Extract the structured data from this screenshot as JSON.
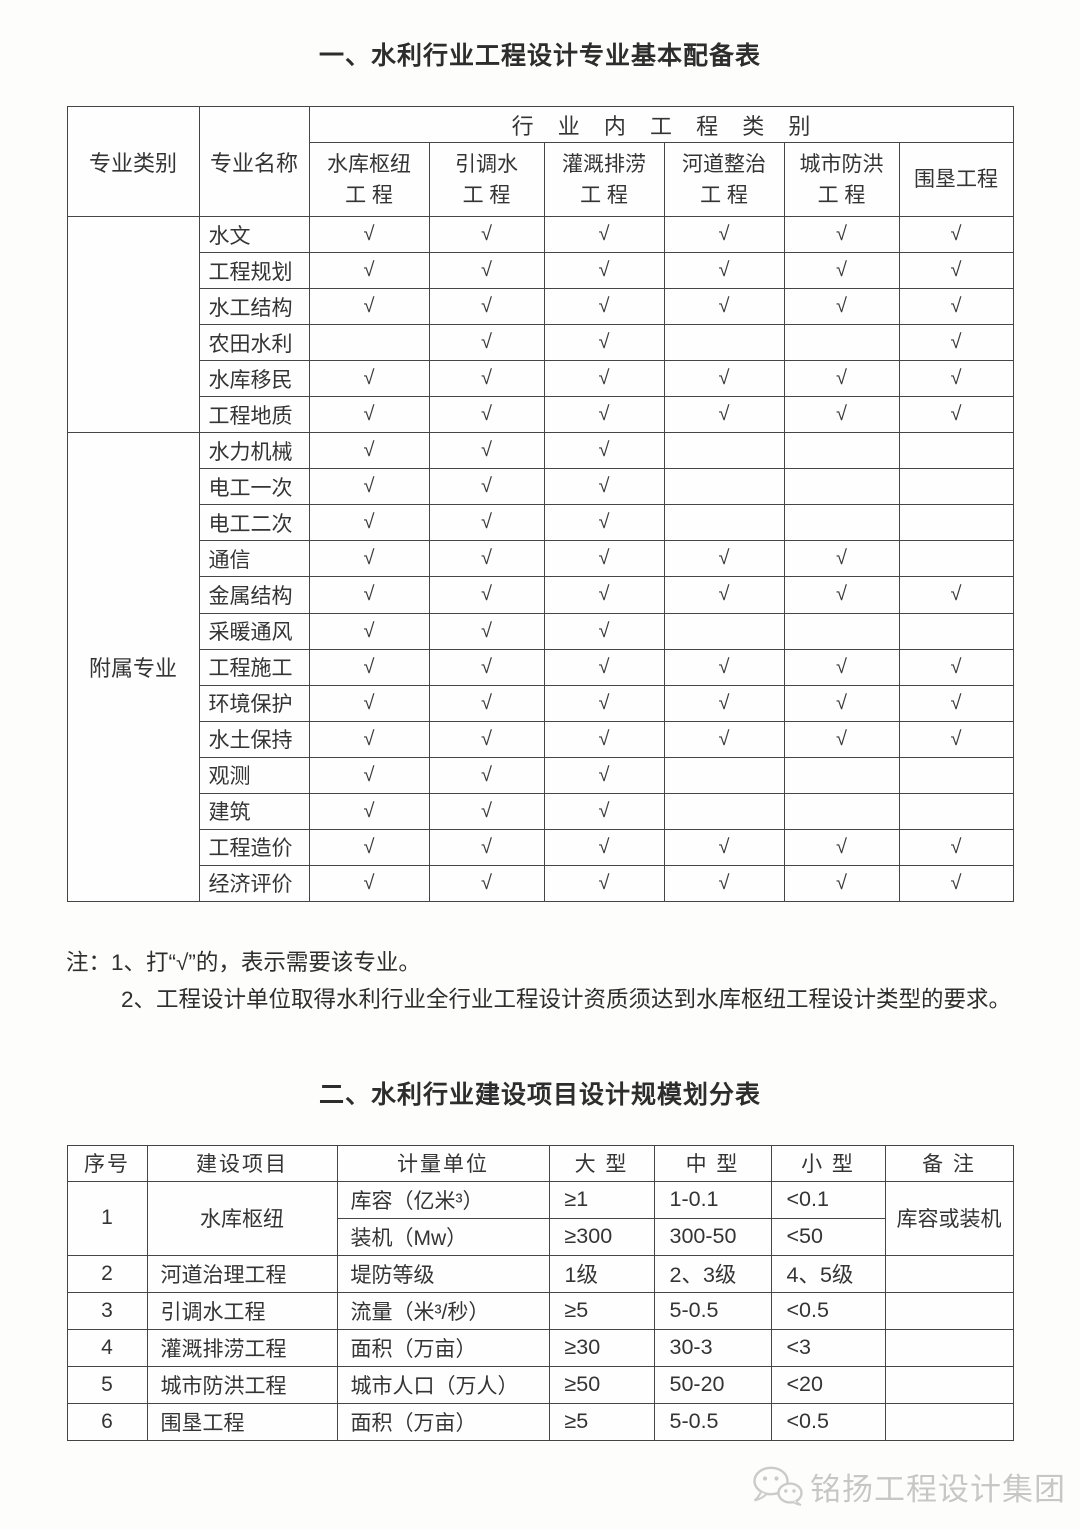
{
  "table1": {
    "title": "一、水利行业工程设计专业基本配备表",
    "header": {
      "category": "专业类别",
      "name": "专业名称",
      "group": "行 业 内 工 程 类 别",
      "types": [
        {
          "line1": "水库枢纽",
          "line2": "工 程"
        },
        {
          "line1": "引调水",
          "line2": "工 程"
        },
        {
          "line1": "灌溉排涝",
          "line2": "工 程"
        },
        {
          "line1": "河道整治",
          "line2": "工 程"
        },
        {
          "line1": "城市防洪",
          "line2": "工 程"
        },
        {
          "line1": "围垦工程",
          "line2": ""
        }
      ]
    },
    "groups": [
      {
        "category": "",
        "rows": [
          {
            "name": "水文",
            "checks": [
              "√",
              "√",
              "√",
              "√",
              "√",
              "√"
            ]
          },
          {
            "name": "工程规划",
            "checks": [
              "√",
              "√",
              "√",
              "√",
              "√",
              "√"
            ]
          },
          {
            "name": "水工结构",
            "checks": [
              "√",
              "√",
              "√",
              "√",
              "√",
              "√"
            ]
          },
          {
            "name": "农田水利",
            "checks": [
              "",
              "√",
              "√",
              "",
              "",
              "√"
            ]
          },
          {
            "name": "水库移民",
            "checks": [
              "√",
              "√",
              "√",
              "√",
              "√",
              "√"
            ]
          },
          {
            "name": "工程地质",
            "checks": [
              "√",
              "√",
              "√",
              "√",
              "√",
              "√"
            ]
          }
        ]
      },
      {
        "category": "附属专业",
        "rows": [
          {
            "name": "水力机械",
            "checks": [
              "√",
              "√",
              "√",
              "",
              "",
              ""
            ]
          },
          {
            "name": "电工一次",
            "checks": [
              "√",
              "√",
              "√",
              "",
              "",
              ""
            ]
          },
          {
            "name": "电工二次",
            "checks": [
              "√",
              "√",
              "√",
              "",
              "",
              ""
            ]
          },
          {
            "name": "通信",
            "checks": [
              "√",
              "√",
              "√",
              "√",
              "√",
              ""
            ]
          },
          {
            "name": "金属结构",
            "checks": [
              "√",
              "√",
              "√",
              "√",
              "√",
              "√"
            ]
          },
          {
            "name": "采暖通风",
            "checks": [
              "√",
              "√",
              "√",
              "",
              "",
              ""
            ]
          },
          {
            "name": "工程施工",
            "checks": [
              "√",
              "√",
              "√",
              "√",
              "√",
              "√"
            ]
          },
          {
            "name": "环境保护",
            "checks": [
              "√",
              "√",
              "√",
              "√",
              "√",
              "√"
            ]
          },
          {
            "name": "水土保持",
            "checks": [
              "√",
              "√",
              "√",
              "√",
              "√",
              "√"
            ]
          },
          {
            "name": "观测",
            "checks": [
              "√",
              "√",
              "√",
              "",
              "",
              ""
            ]
          },
          {
            "name": "建筑",
            "checks": [
              "√",
              "√",
              "√",
              "",
              "",
              ""
            ]
          },
          {
            "name": "工程造价",
            "checks": [
              "√",
              "√",
              "√",
              "√",
              "√",
              "√"
            ]
          },
          {
            "name": "经济评价",
            "checks": [
              "√",
              "√",
              "√",
              "√",
              "√",
              "√"
            ]
          }
        ]
      }
    ]
  },
  "notes": {
    "label": "注：",
    "note1": "1、打“√”的，表示需要该专业。",
    "note2": "2、工程设计单位取得水利行业全行业工程设计资质须达到水库枢纽工程设计类型的要求。"
  },
  "table2": {
    "title": "二、水利行业建设项目设计规模划分表",
    "columns": [
      "序号",
      "建设项目",
      "计量单位",
      "大 型",
      "中 型",
      "小 型",
      "备 注"
    ],
    "rows": [
      {
        "span": 2,
        "no": "1",
        "project": "水库枢纽",
        "unit": "库容（亿米³）",
        "large": "≥1",
        "medium": "1-0.1",
        "small": "<0.1",
        "note": "库容或装机"
      },
      {
        "unit": "装机（Mw）",
        "large": "≥300",
        "medium": "300-50",
        "small": "<50"
      },
      {
        "no": "2",
        "project": "河道治理工程",
        "unit": "堤防等级",
        "large": "1级",
        "medium": "2、3级",
        "small": "4、5级",
        "note": ""
      },
      {
        "no": "3",
        "project": "引调水工程",
        "unit": "流量（米³/秒）",
        "large": "≥5",
        "medium": "5-0.5",
        "small": "<0.5",
        "note": ""
      },
      {
        "no": "4",
        "project": "灌溉排涝工程",
        "unit": "面积（万亩）",
        "large": "≥30",
        "medium": "30-3",
        "small": "<3",
        "note": ""
      },
      {
        "no": "5",
        "project": "城市防洪工程",
        "unit": "城市人口（万人）",
        "large": "≥50",
        "medium": "50-20",
        "small": "<20",
        "note": ""
      },
      {
        "no": "6",
        "project": "围垦工程",
        "unit": "面积（万亩）",
        "large": "≥5",
        "medium": "5-0.5",
        "small": "<0.5",
        "note": ""
      }
    ]
  },
  "watermark": {
    "text": "铭扬工程设计集团"
  }
}
